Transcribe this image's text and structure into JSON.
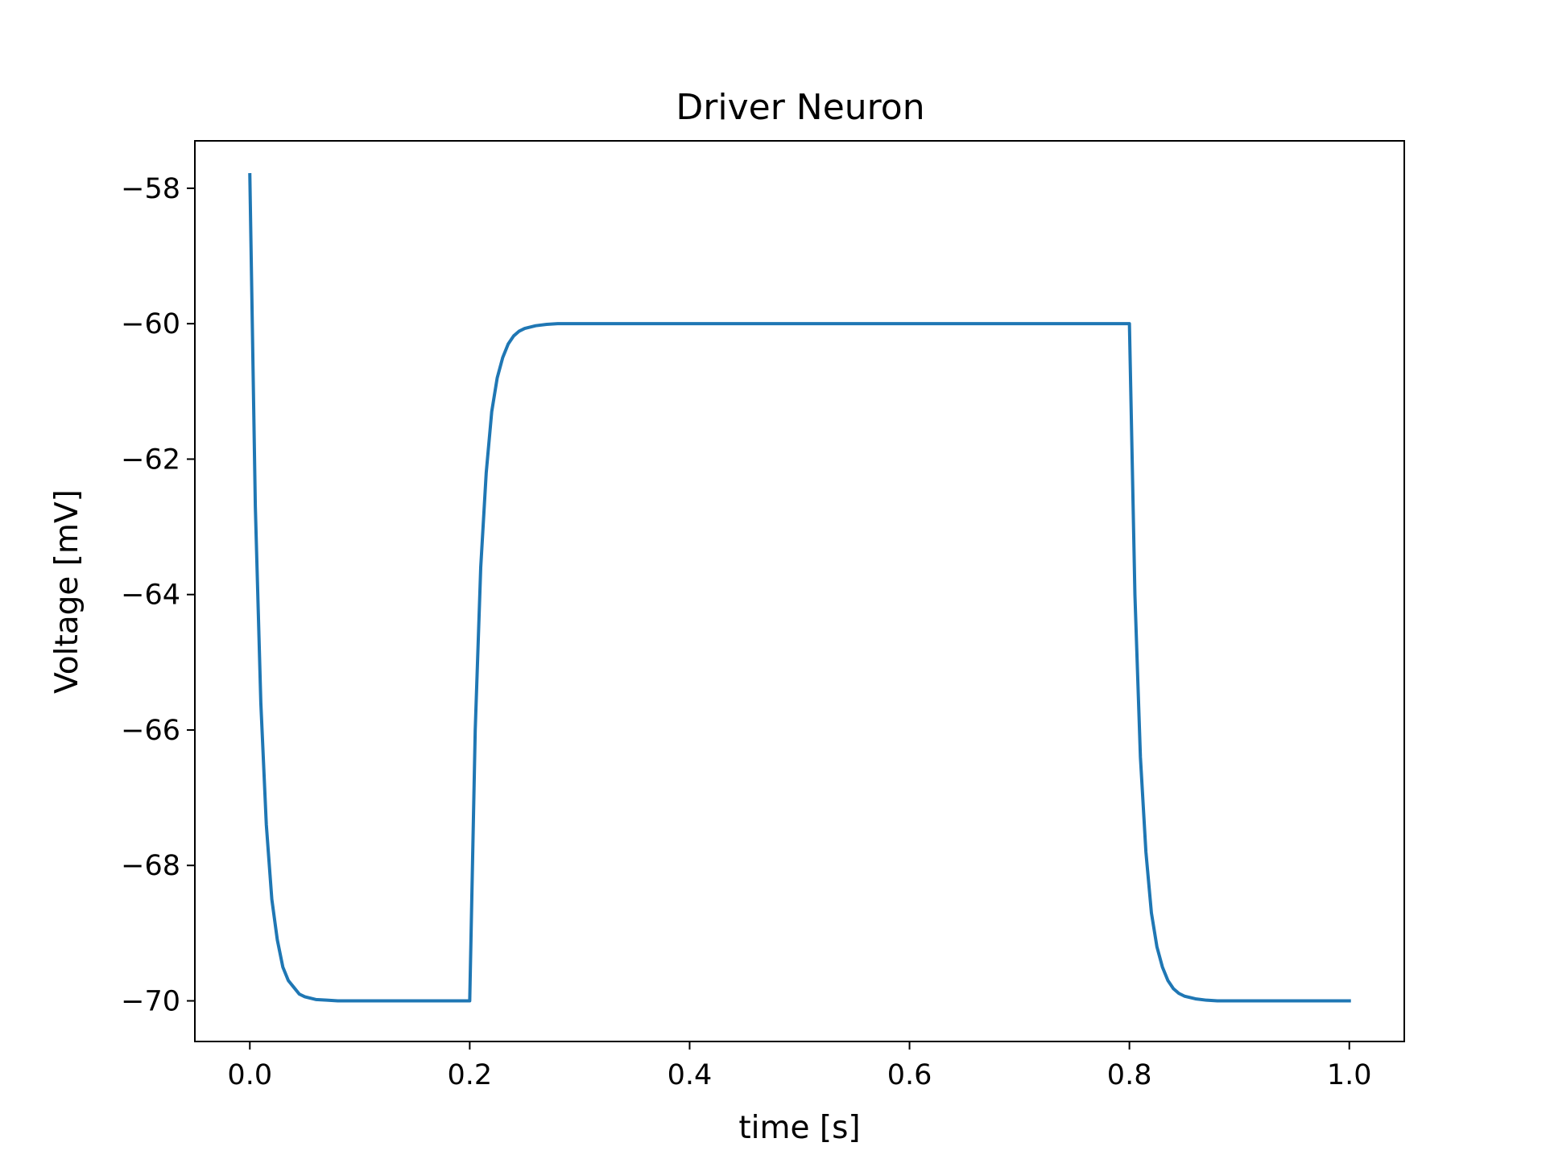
{
  "chart_data": {
    "type": "line",
    "title": "Driver Neuron",
    "xlabel": "time [s]",
    "ylabel": "Voltage [mV]",
    "xlim": [
      -0.05,
      1.05
    ],
    "ylim": [
      -70.6,
      -57.3
    ],
    "xticks": [
      0.0,
      0.2,
      0.4,
      0.6,
      0.8,
      1.0
    ],
    "xtick_labels": [
      "0.0",
      "0.2",
      "0.4",
      "0.6",
      "0.8",
      "1.0"
    ],
    "yticks": [
      -58,
      -60,
      -62,
      -64,
      -66,
      -68,
      -70
    ],
    "ytick_labels": [
      "−58",
      "−60",
      "−62",
      "−64",
      "−66",
      "−68",
      "−70"
    ],
    "grid": false,
    "legend": "none",
    "series": [
      {
        "color": "#1f77b4",
        "x": [
          0.0,
          0.005,
          0.01,
          0.015,
          0.02,
          0.025,
          0.03,
          0.035,
          0.04,
          0.045,
          0.05,
          0.06,
          0.07,
          0.08,
          0.1,
          0.15,
          0.2,
          0.2,
          0.205,
          0.21,
          0.215,
          0.22,
          0.225,
          0.23,
          0.235,
          0.24,
          0.245,
          0.25,
          0.26,
          0.27,
          0.28,
          0.3,
          0.4,
          0.5,
          0.6,
          0.7,
          0.8,
          0.8,
          0.805,
          0.81,
          0.815,
          0.82,
          0.825,
          0.83,
          0.835,
          0.84,
          0.845,
          0.85,
          0.86,
          0.87,
          0.88,
          0.9,
          0.95,
          1.0
        ],
        "y": [
          -57.8,
          -62.7,
          -65.6,
          -67.4,
          -68.5,
          -69.1,
          -69.5,
          -69.7,
          -69.8,
          -69.9,
          -69.94,
          -69.98,
          -69.99,
          -70.0,
          -70.0,
          -70.0,
          -70.0,
          -70.0,
          -66.0,
          -63.6,
          -62.2,
          -61.3,
          -60.8,
          -60.5,
          -60.3,
          -60.18,
          -60.11,
          -60.07,
          -60.03,
          -60.01,
          -60.0,
          -60.0,
          -60.0,
          -60.0,
          -60.0,
          -60.0,
          -60.0,
          -60.0,
          -64.0,
          -66.4,
          -67.8,
          -68.7,
          -69.2,
          -69.5,
          -69.7,
          -69.82,
          -69.89,
          -69.93,
          -69.97,
          -69.99,
          -70.0,
          -70.0,
          -70.0,
          -70.0
        ]
      }
    ]
  }
}
